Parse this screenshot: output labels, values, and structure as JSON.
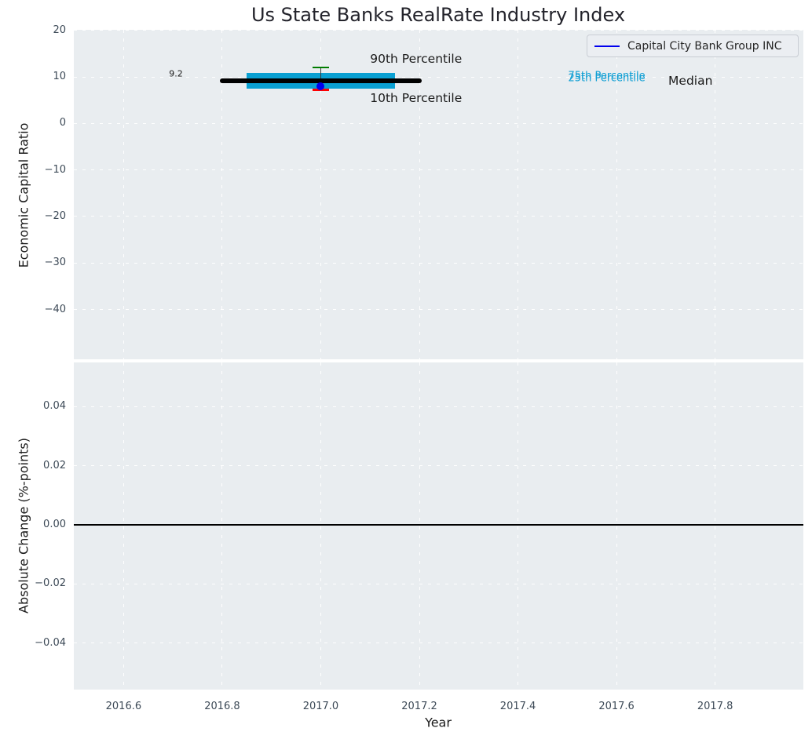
{
  "title": "Us State Banks RealRate Industry Index",
  "legend": {
    "label": "Capital City Bank Group INC",
    "line_color": "#0000ee",
    "position": "upper right"
  },
  "colors": {
    "figure_bg": "#ffffff",
    "axes_bg": "#e9edf0",
    "grid": "#ffffff",
    "tick_label": "#3d4a57",
    "text": "#1a1a1a",
    "box": "#0aa0d2",
    "p90_cap": "#007d00",
    "p10_cap": "#ff0000",
    "median_line": "#000000",
    "whisker_line": "#3a3a3a",
    "company_point": "#0000ee",
    "zero_line": "#000000"
  },
  "chart_data": [
    {
      "type": "boxplot",
      "title": "Us State Banks RealRate Industry Index",
      "ylabel": "Economic Capital Ratio",
      "xlim": [
        2016.499,
        2017.979
      ],
      "ylim": [
        -50.7,
        20.12
      ],
      "yticks": [
        20,
        10,
        0,
        -10,
        -20,
        -30,
        -40
      ],
      "yticklabels": [
        "20",
        "10",
        "0",
        "−10",
        "−20",
        "−30",
        "−40"
      ],
      "xticks": [
        2016.6,
        2016.8,
        2017.0,
        2017.2,
        2017.4,
        2017.6,
        2017.8
      ],
      "grid": true,
      "legend_entries": [
        "Capital City Bank Group INC"
      ],
      "industry_summary": {
        "year": 2017.0,
        "p90": 12.0,
        "p75": 10.8,
        "median": 9.2,
        "p25": 7.5,
        "p10": 7.2,
        "box_x_range": [
          2016.85,
          2017.15
        ],
        "median_x_range": [
          2016.8,
          2017.2
        ],
        "cap_x_range": [
          2016.984,
          2017.016
        ]
      },
      "company_point": {
        "name": "Capital City Bank Group INC",
        "x": 2017.0,
        "y": 7.9
      },
      "annotations": [
        {
          "text": "90th Percentile",
          "x": 2017.1,
          "y": 13.9,
          "align": "left",
          "kind": "large",
          "color": "#1a1a1a"
        },
        {
          "text": "10th Percentile",
          "x": 2017.1,
          "y": 5.5,
          "align": "left",
          "kind": "large",
          "color": "#1a1a1a"
        },
        {
          "text": "75th Percentile",
          "x": 2017.58,
          "y": 10.2,
          "align": "center",
          "kind": "small",
          "color": "#0f9fd4"
        },
        {
          "text": "25th Percentile",
          "x": 2017.58,
          "y": 9.7,
          "align": "center",
          "kind": "small",
          "color": "#0f9fd4"
        },
        {
          "text": "Median",
          "x": 2017.75,
          "y": 9.1,
          "align": "center",
          "kind": "large",
          "color": "#1a1a1a"
        },
        {
          "text": "9.2",
          "x": 2016.72,
          "y": 10.7,
          "align": "right",
          "kind": "tiny",
          "color": "#1a1a1a"
        }
      ]
    },
    {
      "type": "line",
      "ylabel": "Absolute Change (%-points)",
      "xlabel": "Year",
      "xlim": [
        2016.499,
        2017.979
      ],
      "ylim": [
        -0.0558,
        0.055
      ],
      "yticks": [
        0.04,
        0.02,
        0.0,
        -0.02,
        -0.04
      ],
      "yticklabels": [
        "0.04",
        "0.02",
        "0.00",
        "−0.02",
        "−0.04"
      ],
      "xticks": [
        2016.6,
        2016.8,
        2017.0,
        2017.2,
        2017.4,
        2017.6,
        2017.8
      ],
      "xticklabels": [
        "2016.6",
        "2016.8",
        "2017.0",
        "2017.2",
        "2017.4",
        "2017.6",
        "2017.8"
      ],
      "grid": true,
      "zero_line": 0.0,
      "series": []
    }
  ]
}
